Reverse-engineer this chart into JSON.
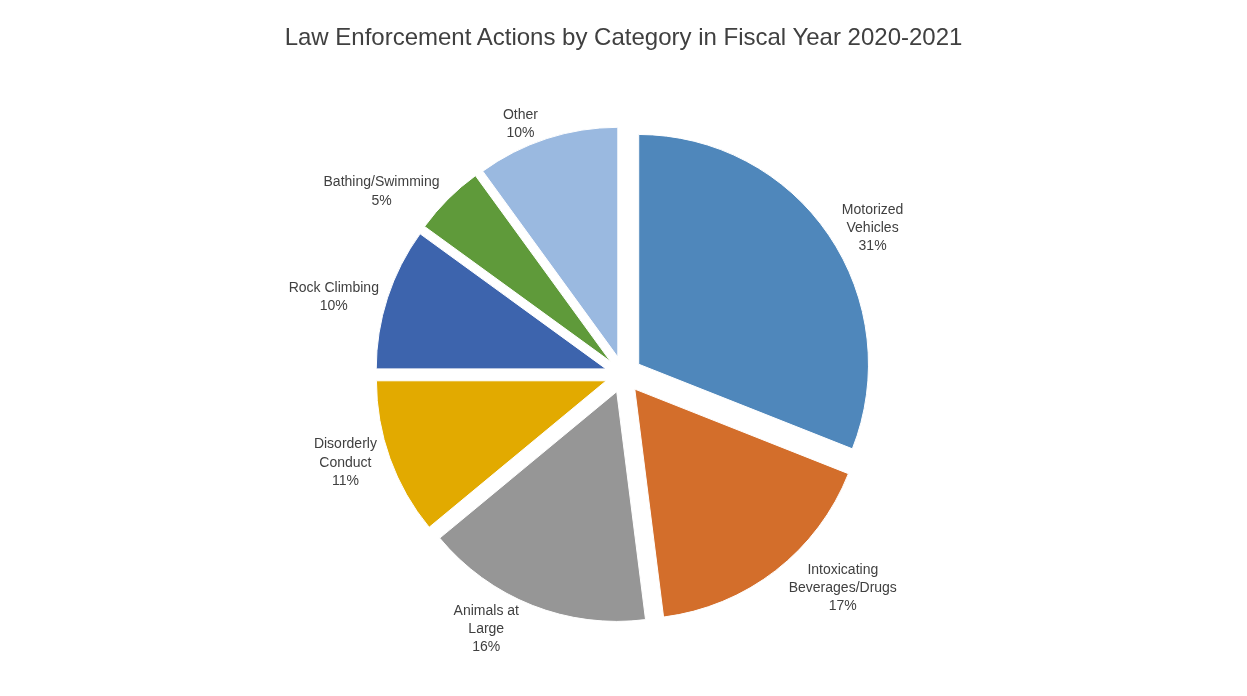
{
  "chart_data": {
    "type": "pie",
    "title": "Law Enforcement Actions by Category in Fiscal Year 2020-2021",
    "categories": [
      "Motorized Vehicles",
      "Intoxicating Beverages/Drugs",
      "Animals at Large",
      "Disorderly Conduct",
      "Rock Climbing",
      "Bathing/Swimming",
      "Other"
    ],
    "values": [
      31,
      17,
      16,
      11,
      10,
      5,
      10
    ],
    "value_labels": [
      "31%",
      "17%",
      "16%",
      "11%",
      "10%",
      "5%",
      "10%"
    ],
    "colors": [
      "#4f87bb",
      "#d36e2b",
      "#969696",
      "#e2aa00",
      "#3d64ad",
      "#5f9a3a",
      "#9ab9e0"
    ],
    "legend": false
  }
}
